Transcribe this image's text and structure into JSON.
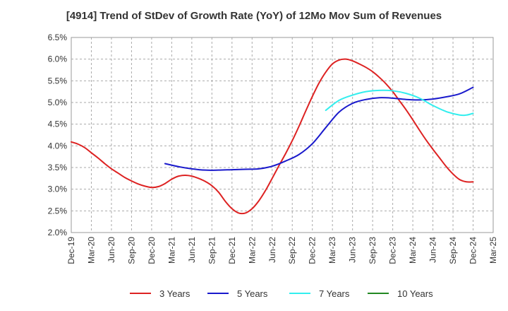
{
  "chart_data": {
    "type": "line",
    "title": "[4914]  Trend of StDev of Growth Rate (YoY) of 12Mo Mov Sum of Revenues",
    "xlabel": "",
    "ylabel": "",
    "ylim": [
      2.0,
      6.5
    ],
    "yticks": [
      "2.0%",
      "2.5%",
      "3.0%",
      "3.5%",
      "4.0%",
      "4.5%",
      "5.0%",
      "5.5%",
      "6.0%",
      "6.5%"
    ],
    "ytick_values": [
      2.0,
      2.5,
      3.0,
      3.5,
      4.0,
      4.5,
      5.0,
      5.5,
      6.0,
      6.5
    ],
    "xticks": [
      "Dec-19",
      "Mar-20",
      "Jun-20",
      "Sep-20",
      "Dec-20",
      "Mar-21",
      "Jun-21",
      "Sep-21",
      "Dec-21",
      "Mar-22",
      "Jun-22",
      "Sep-22",
      "Dec-22",
      "Mar-23",
      "Jun-23",
      "Sep-23",
      "Dec-23",
      "Mar-24",
      "Jun-24",
      "Sep-24",
      "Dec-24",
      "Mar-25"
    ],
    "x_range_months": [
      0,
      63
    ],
    "grid": true,
    "legend_position": "bottom",
    "series": [
      {
        "name": "3 Years",
        "color": "#dd2222",
        "x_months": [
          0,
          1,
          2,
          3,
          4,
          5,
          6,
          7,
          8,
          9,
          10,
          11,
          12,
          13,
          14,
          15,
          16,
          17,
          18,
          19,
          20,
          21,
          22,
          23,
          24,
          25,
          26,
          27,
          28,
          29,
          30,
          31,
          32,
          33,
          34,
          35,
          36,
          37,
          38,
          39,
          40,
          41,
          42,
          43,
          44,
          45,
          46,
          47,
          48,
          49,
          50,
          51,
          52,
          53,
          54,
          55,
          56,
          57,
          58,
          59,
          60
        ],
        "values": [
          4.09,
          4.04,
          3.96,
          3.84,
          3.72,
          3.59,
          3.47,
          3.37,
          3.27,
          3.19,
          3.12,
          3.07,
          3.04,
          3.06,
          3.13,
          3.23,
          3.3,
          3.32,
          3.3,
          3.25,
          3.18,
          3.08,
          2.93,
          2.72,
          2.55,
          2.45,
          2.45,
          2.55,
          2.73,
          2.97,
          3.25,
          3.54,
          3.82,
          4.12,
          4.45,
          4.8,
          5.14,
          5.45,
          5.7,
          5.89,
          5.98,
          6.0,
          5.96,
          5.89,
          5.81,
          5.71,
          5.58,
          5.43,
          5.25,
          5.04,
          4.83,
          4.6,
          4.36,
          4.13,
          3.92,
          3.72,
          3.52,
          3.35,
          3.22,
          3.17,
          3.17
        ]
      },
      {
        "name": "5 Years",
        "color": "#1a1acc",
        "x_months": [
          14,
          16,
          18,
          20,
          22,
          24,
          26,
          28,
          30,
          32,
          34,
          36,
          38,
          40,
          42,
          44,
          46,
          48,
          50,
          52,
          54,
          56,
          58,
          60
        ],
        "values": [
          3.59,
          3.52,
          3.47,
          3.44,
          3.44,
          3.45,
          3.46,
          3.47,
          3.53,
          3.65,
          3.8,
          4.05,
          4.42,
          4.78,
          4.98,
          5.07,
          5.11,
          5.1,
          5.07,
          5.06,
          5.08,
          5.13,
          5.2,
          5.35
        ]
      },
      {
        "name": "7 Years",
        "color": "#33eeee",
        "x_months": [
          38,
          40,
          42,
          44,
          46,
          48,
          50,
          52,
          54,
          56,
          58,
          59,
          60
        ],
        "values": [
          4.82,
          5.05,
          5.17,
          5.25,
          5.28,
          5.27,
          5.21,
          5.1,
          4.93,
          4.79,
          4.71,
          4.71,
          4.75
        ]
      },
      {
        "name": "10 Years",
        "color": "#228822",
        "x_months": [],
        "values": []
      }
    ]
  }
}
